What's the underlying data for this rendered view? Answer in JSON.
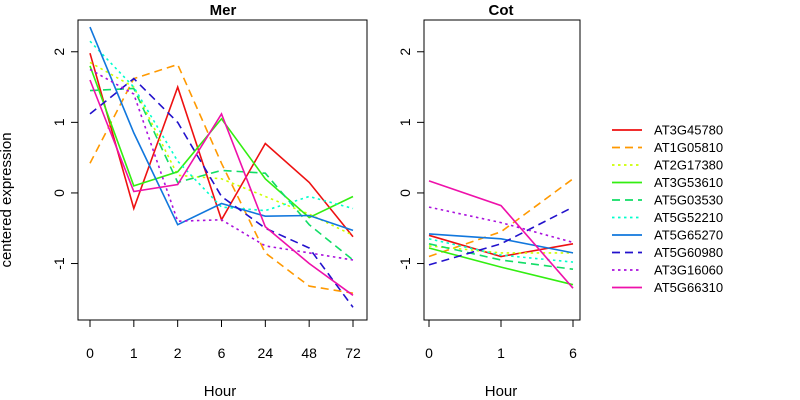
{
  "chart_data": {
    "type": "line",
    "ylabel": "centered expression",
    "ylim": [
      -1.8,
      2.45
    ],
    "yticks": [
      -1,
      0,
      1,
      2
    ],
    "panels": [
      {
        "title": "Mer",
        "xlabel": "Hour",
        "categories": [
          "0",
          "1",
          "2",
          "6",
          "24",
          "48",
          "72"
        ],
        "series": [
          {
            "name": "AT3G45780",
            "values": [
              1.98,
              -0.22,
              1.5,
              -0.38,
              0.7,
              0.15,
              -0.62
            ]
          },
          {
            "name": "AT1G05810",
            "values": [
              0.42,
              1.62,
              1.82,
              0.42,
              -0.85,
              -1.32,
              -1.42
            ]
          },
          {
            "name": "AT2G17380",
            "values": [
              1.85,
              1.5,
              0.25,
              0.2,
              -0.05,
              -0.3,
              -0.6
            ]
          },
          {
            "name": "AT3G53610",
            "values": [
              1.8,
              0.1,
              0.3,
              1.05,
              0.2,
              -0.35,
              -0.05
            ]
          },
          {
            "name": "AT5G03530",
            "values": [
              1.45,
              1.48,
              0.15,
              0.32,
              0.28,
              -0.45,
              -0.95
            ]
          },
          {
            "name": "AT5G52210",
            "values": [
              2.15,
              1.5,
              0.45,
              -0.2,
              -0.25,
              -0.05,
              -0.22
            ]
          },
          {
            "name": "AT5G65270",
            "values": [
              2.35,
              0.85,
              -0.45,
              -0.15,
              -0.33,
              -0.32,
              -0.53
            ]
          },
          {
            "name": "AT5G60980",
            "values": [
              1.12,
              1.62,
              1.0,
              -0.05,
              -0.5,
              -0.78,
              -1.62
            ]
          },
          {
            "name": "AT3G16060",
            "values": [
              1.75,
              1.4,
              -0.4,
              -0.38,
              -0.75,
              -0.85,
              -0.95
            ]
          },
          {
            "name": "AT5G66310",
            "values": [
              1.6,
              0.02,
              0.12,
              1.12,
              -0.48,
              -1.0,
              -1.45
            ]
          }
        ]
      },
      {
        "title": "Cot",
        "xlabel": "Hour",
        "categories": [
          "0",
          "1",
          "6"
        ],
        "series": [
          {
            "name": "AT3G45780",
            "values": [
              -0.6,
              -0.9,
              -0.72
            ]
          },
          {
            "name": "AT1G05810",
            "values": [
              -0.9,
              -0.55,
              0.2
            ]
          },
          {
            "name": "AT2G17380",
            "values": [
              -0.75,
              -0.85,
              -0.85
            ]
          },
          {
            "name": "AT3G53610",
            "values": [
              -0.78,
              -1.05,
              -1.3
            ]
          },
          {
            "name": "AT5G03530",
            "values": [
              -0.72,
              -0.95,
              -1.08
            ]
          },
          {
            "name": "AT5G52210",
            "values": [
              -0.65,
              -0.88,
              -0.98
            ]
          },
          {
            "name": "AT5G65270",
            "values": [
              -0.58,
              -0.65,
              -0.85
            ]
          },
          {
            "name": "AT5G60980",
            "values": [
              -1.02,
              -0.72,
              -0.2
            ]
          },
          {
            "name": "AT3G16060",
            "values": [
              -0.2,
              -0.42,
              -0.7
            ]
          },
          {
            "name": "AT5G66310",
            "values": [
              0.17,
              -0.18,
              -1.35
            ]
          }
        ]
      }
    ],
    "legend": {
      "placement": "right",
      "entries": [
        {
          "name": "AT3G45780",
          "color": "#ee1111",
          "dash": "solid"
        },
        {
          "name": "AT1G05810",
          "color": "#ff9900",
          "dash": "dashed"
        },
        {
          "name": "AT2G17380",
          "color": "#ccff00",
          "dash": "dotted"
        },
        {
          "name": "AT3G53610",
          "color": "#33ee11",
          "dash": "solid"
        },
        {
          "name": "AT5G03530",
          "color": "#11dd66",
          "dash": "dashed"
        },
        {
          "name": "AT5G52210",
          "color": "#00ffcc",
          "dash": "dotted"
        },
        {
          "name": "AT5G65270",
          "color": "#1177dd",
          "dash": "solid"
        },
        {
          "name": "AT5G60980",
          "color": "#2211cc",
          "dash": "dashed"
        },
        {
          "name": "AT3G16060",
          "color": "#aa11dd",
          "dash": "dotted"
        },
        {
          "name": "AT5G66310",
          "color": "#ee11aa",
          "dash": "solid"
        }
      ]
    }
  }
}
